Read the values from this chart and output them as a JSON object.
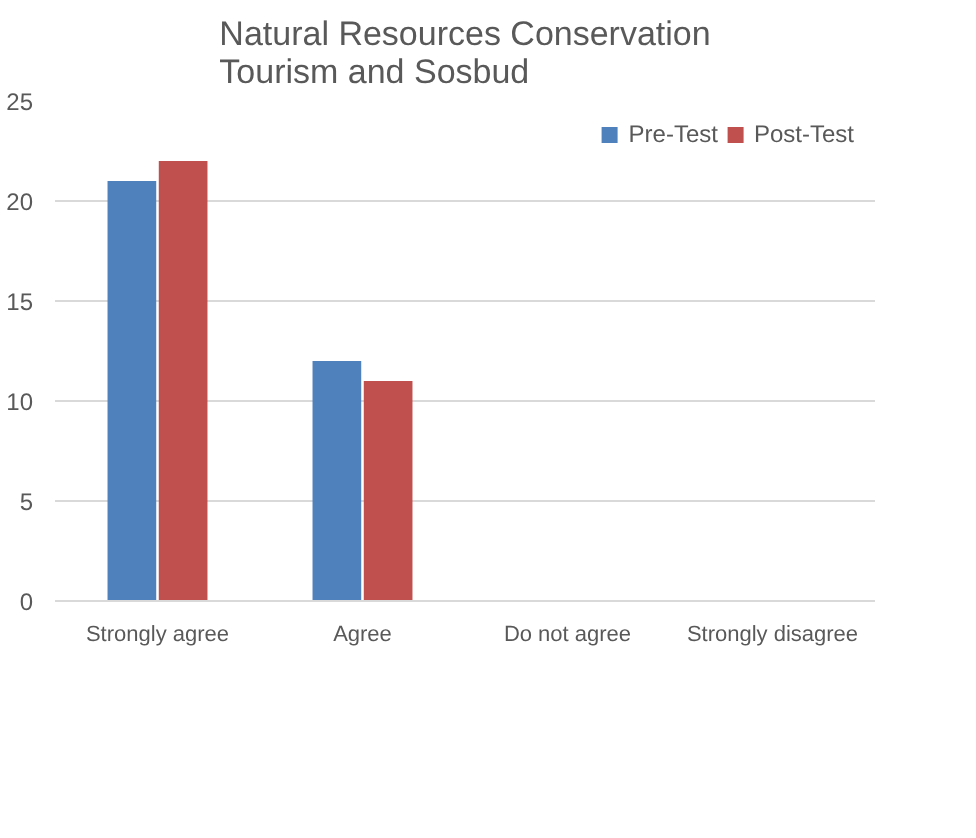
{
  "chart_data": {
    "type": "bar",
    "title": "Natural Resources Conservation Tourism and Sosbud",
    "categories": [
      "Strongly agree",
      "Agree",
      "Do not agree",
      "Strongly disagree"
    ],
    "series": [
      {
        "name": "Pre-Test",
        "color": "#4f81bd",
        "values": [
          21,
          12,
          0,
          0
        ]
      },
      {
        "name": "Post-Test",
        "color": "#c0504d",
        "values": [
          22,
          11,
          0,
          0
        ]
      }
    ],
    "ylim": [
      0,
      25
    ],
    "yticks": [
      0,
      5,
      10,
      15,
      20,
      25
    ],
    "grid": "y",
    "legend": "top right"
  }
}
